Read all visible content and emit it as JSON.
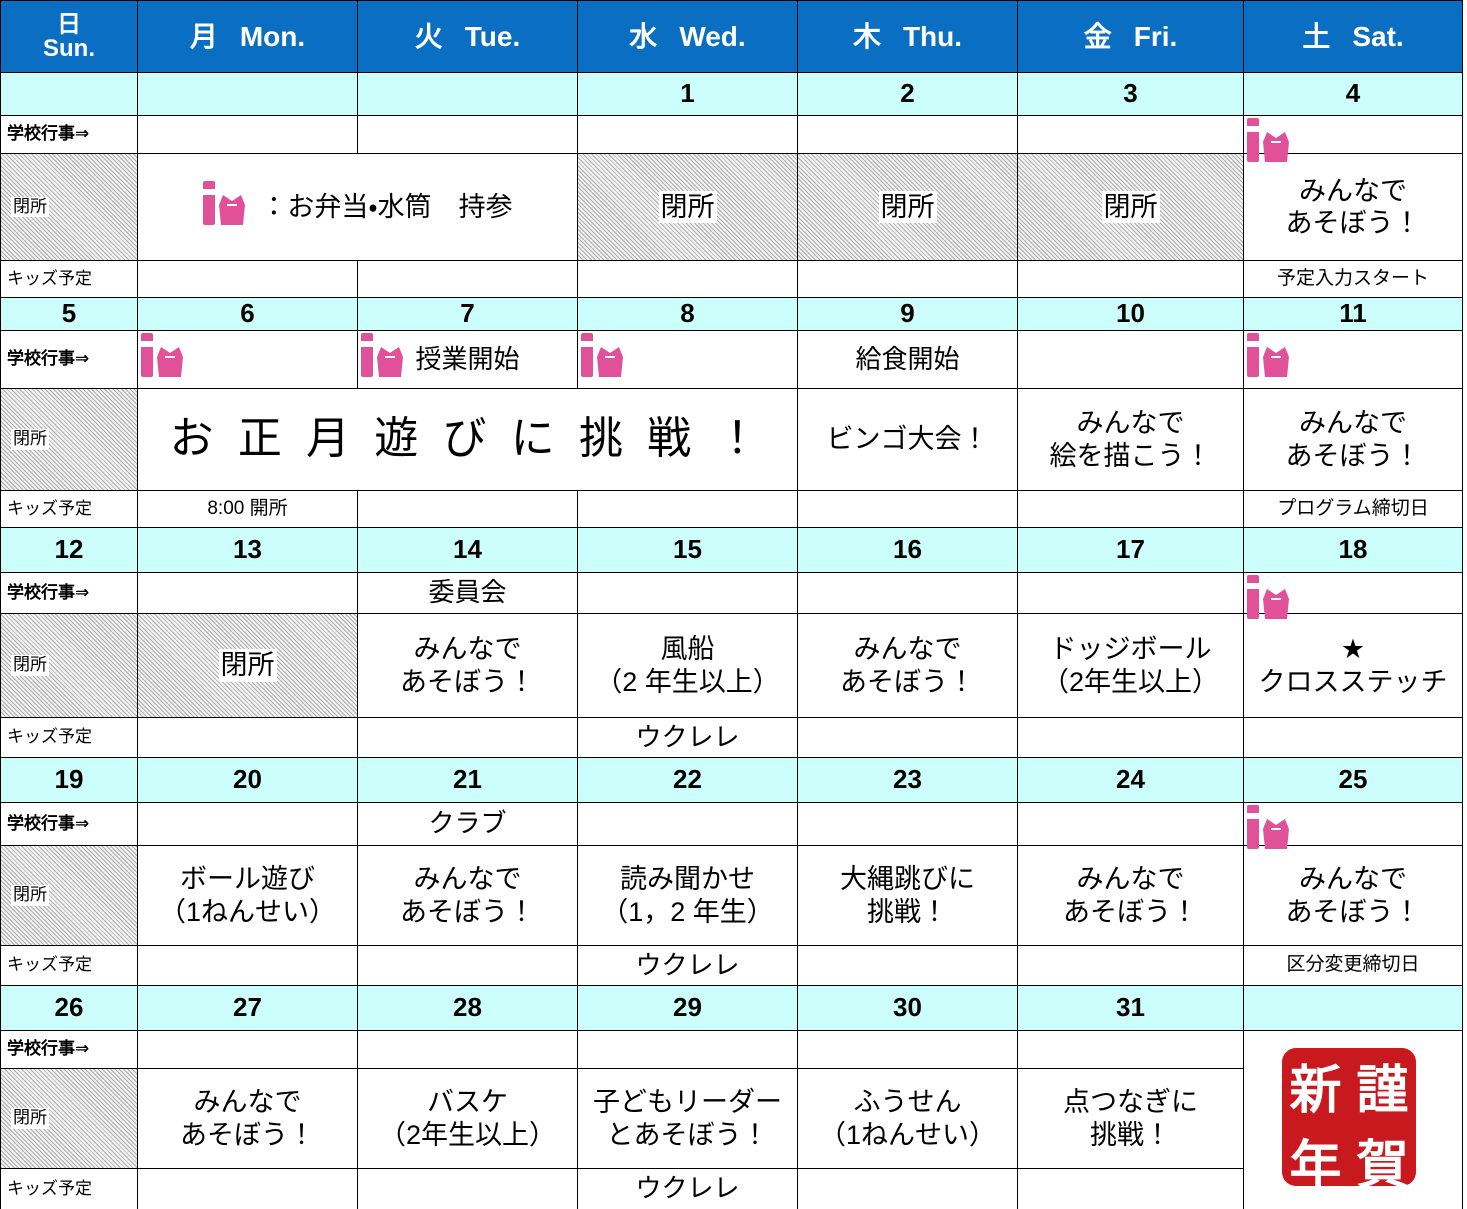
{
  "header": {
    "days": [
      {
        "jp": "日",
        "en": "Sun."
      },
      {
        "jp": "月",
        "en": "Mon."
      },
      {
        "jp": "火",
        "en": "Tue."
      },
      {
        "jp": "水",
        "en": "Wed."
      },
      {
        "jp": "木",
        "en": "Thu."
      },
      {
        "jp": "金",
        "en": "Fri."
      },
      {
        "jp": "土",
        "en": "Sat."
      }
    ]
  },
  "row_labels": [
    "学校行事⇒",
    "閉所",
    "キッズ予定"
  ],
  "weeks": [
    {
      "dates": [
        null,
        null,
        null,
        1,
        2,
        3,
        4
      ],
      "school": [
        null,
        null,
        null,
        null,
        null,
        {
          "bento": true
        }
      ],
      "main": [
        {
          "text": "：お弁当・水筒　持参",
          "span": 2,
          "bento": true
        },
        "閉所",
        "閉所",
        "閉所",
        "みんなで\nあそぼう！"
      ],
      "kids": [
        null,
        null,
        null,
        null,
        null,
        "予定入力スタート"
      ]
    },
    {
      "dates": [
        5,
        6,
        7,
        8,
        9,
        10,
        11
      ],
      "school": [
        {
          "bento": true
        },
        {
          "text": "授業開始",
          "bento": true
        },
        {
          "bento": true
        },
        "給食開始",
        null,
        {
          "bento": true
        }
      ],
      "main": [
        {
          "text": "お 正 月 遊 び に 挑 戦 ！",
          "span": 3
        },
        "ビンゴ大会！",
        "みんなで\n絵を描こう！",
        "みんなで\nあそぼう！"
      ],
      "kids": [
        "8:00 開所",
        null,
        null,
        null,
        null,
        "プログラム締切日"
      ]
    },
    {
      "dates": [
        12,
        13,
        14,
        15,
        16,
        17,
        18
      ],
      "school": [
        null,
        "委員会",
        null,
        null,
        null,
        {
          "bento": true
        }
      ],
      "main": [
        "閉所",
        "みんなで\nあそぼう！",
        "風船\n（2 年生以上）",
        "みんなで\nあそぼう！",
        "ドッジボール\n（2年生以上）",
        "★\nクロスステッチ"
      ],
      "kids": [
        null,
        null,
        "ウクレレ",
        null,
        null,
        null
      ]
    },
    {
      "dates": [
        19,
        20,
        21,
        22,
        23,
        24,
        25
      ],
      "school": [
        null,
        "クラブ",
        null,
        null,
        null,
        {
          "bento": true
        }
      ],
      "main": [
        "ボール遊び\n（1ねんせい）",
        "みんなで\nあそぼう！",
        "読み聞かせ\n（1，2 年生）",
        "大縄跳びに\n挑戦！",
        "みんなで\nあそぼう！",
        "みんなで\nあそぼう！"
      ],
      "kids": [
        null,
        null,
        "ウクレレ",
        null,
        null,
        "区分変更締切日"
      ]
    },
    {
      "dates": [
        26,
        27,
        28,
        29,
        30,
        31,
        null
      ],
      "school": [
        null,
        null,
        null,
        null,
        null
      ],
      "main": [
        "みんなで\nあそぼう！",
        "バスケ\n（2年生以上）",
        "子どもリーダー\nとあそぼう！",
        "ふうせん\n（1ねんせい）",
        "点つなぎに\n挑戦！"
      ],
      "kids": [
        null,
        null,
        "ウクレレ",
        null,
        null
      ],
      "stamp": [
        "新",
        "謹",
        "年",
        "賀"
      ]
    }
  ]
}
